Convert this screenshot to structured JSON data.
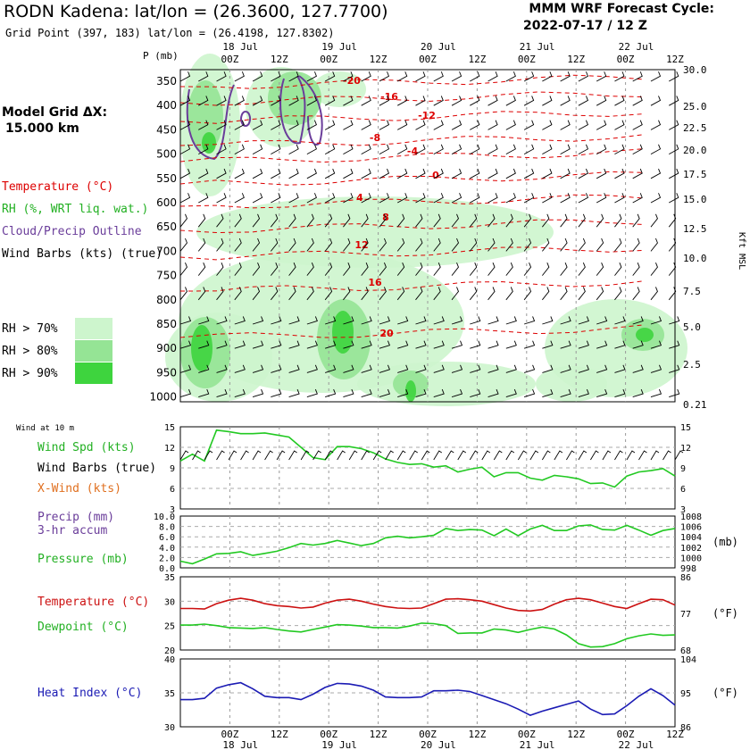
{
  "header": {
    "title": "RODN Kadena:  lat/lon = (26.3600, 127.7700)",
    "subtitle": "Grid Point (397, 183) lat/lon = (26.4198, 127.8302)",
    "forecast_title": "MMM WRF Forecast Cycle:",
    "forecast_cycle": "2022-07-17 / 12  Z"
  },
  "sidebar": {
    "model_grid_line1": "Model Grid ΔX:",
    "model_grid_line2": "15.000 km",
    "legend": {
      "temperature": "Temperature (°C)",
      "rh": "RH (%, WRT liq. wat.)",
      "cloud": "Cloud/Precip Outline",
      "wind": "Wind Barbs (kts) (true)"
    },
    "rh_boxes": [
      {
        "label": "RH > 70%",
        "color": "#cdf5cd"
      },
      {
        "label": "RH > 80%",
        "color": "#95e495"
      },
      {
        "label": "RH > 90%",
        "color": "#3ed43e"
      }
    ],
    "panel_labels": {
      "wind_at_10m": "Wind at 10 m",
      "wind_spd": "Wind Spd (kts)",
      "wind_barbs": "Wind Barbs (true)",
      "xwind": "X-Wind (kts)",
      "precip_line1": "Precip (mm)",
      "precip_line2": "3-hr accum",
      "pressure": "Pressure (mb)",
      "temperature": "Temperature (°C)",
      "dewpoint": "Dewpoint (°C)",
      "heat_index": "Heat Index (°C)"
    }
  },
  "chart_data": [
    {
      "type": "heatmap",
      "name": "time-height cross section",
      "y_axis_label": "P (mb)",
      "right_axis_label": "Kft MSL",
      "time_axis": {
        "top_dates": [
          "18 Jul",
          "19 Jul",
          "20 Jul",
          "21 Jul",
          "22 Jul"
        ],
        "hour_ticks": [
          "00Z",
          "12Z",
          "00Z",
          "12Z",
          "00Z",
          "12Z",
          "00Z",
          "12Z",
          "00Z",
          "12Z"
        ]
      },
      "pressure_levels": [
        "350",
        "400",
        "450",
        "500",
        "550",
        "600",
        "650",
        "700",
        "750",
        "800",
        "850",
        "900",
        "950",
        "1000"
      ],
      "height_kft": [
        "30.0",
        "25.0",
        "22.5",
        "20.0",
        "17.5",
        "15.0",
        "12.5",
        "10.0",
        "7.5",
        "5.0",
        "2.5",
        "0.21"
      ],
      "temperature_contour_labels": [
        "-20",
        "-16",
        "-12",
        "-8",
        "-4",
        "0",
        "4",
        "8",
        "12",
        "16",
        "20"
      ],
      "colors": {
        "temperature": "#dd0000",
        "rh": "#2fb82f",
        "cloud": "#6a3d9a",
        "wind": "#000000"
      }
    },
    {
      "type": "line",
      "name": "wind at 10 m",
      "left_ticks": [
        "15",
        "12",
        "9",
        "6",
        "3"
      ],
      "right_ticks": [
        "15",
        "12",
        "9",
        "6",
        "3"
      ],
      "ylim": [
        3,
        15
      ],
      "series": [
        {
          "name": "Wind Spd (kts)",
          "color": "#22c922",
          "values": [
            10,
            11,
            10,
            14.5,
            14.3,
            14,
            14,
            14.1,
            13.8,
            13.5,
            12,
            10.5,
            10.2,
            12.1,
            12.1,
            11.8,
            11.2,
            10.3,
            9.8,
            9.5,
            9.6,
            9.1,
            9.3,
            8.4,
            8.8,
            9.1,
            7.7,
            8.3,
            8.3,
            7.5,
            7.2,
            7.9,
            7.7,
            7.4,
            6.7,
            6.8,
            6.2,
            7.8,
            8.4,
            8.6,
            8.9,
            7.8
          ]
        }
      ]
    },
    {
      "type": "line",
      "name": "precip and pressure",
      "left_ticks": [
        "10.0",
        "8.0",
        "6.0",
        "4.0",
        "2.0",
        "0.0"
      ],
      "right_ticks": [
        "1008",
        "1006",
        "1004",
        "1002",
        "1000",
        "998"
      ],
      "right_unit": "(mb)",
      "ylim": [
        998,
        1008
      ],
      "series": [
        {
          "name": "Pressure (mb)",
          "color": "#22c922",
          "values": [
            999.3,
            998.8,
            999.7,
            1000.7,
            1000.8,
            1001.1,
            1000.4,
            1000.8,
            1001.2,
            1001.9,
            1002.7,
            1002.4,
            1002.7,
            1003.3,
            1002.8,
            1002.3,
            1002.7,
            1003.8,
            1004.1,
            1003.8,
            1004.0,
            1004.3,
            1005.6,
            1005.2,
            1005.4,
            1005.3,
            1004.2,
            1005.5,
            1004.2,
            1005.5,
            1006.2,
            1005.2,
            1005.2,
            1006.1,
            1006.3,
            1005.4,
            1005.3,
            1006.2,
            1005.3,
            1004.3,
            1005.2,
            1005.6
          ]
        }
      ]
    },
    {
      "type": "line",
      "name": "temperature and dewpoint",
      "left_ticks": [
        "35",
        "30",
        "25",
        "20"
      ],
      "right_ticks": [
        "86",
        "77",
        "68"
      ],
      "right_unit": "(°F)",
      "ylim": [
        20,
        35
      ],
      "series": [
        {
          "name": "Temperature (°C)",
          "color": "#cc1111",
          "values": [
            28.5,
            28.5,
            28.4,
            29.5,
            30.2,
            30.6,
            30.2,
            29.5,
            29.1,
            28.9,
            28.6,
            28.8,
            29.6,
            30.2,
            30.4,
            30.0,
            29.4,
            28.9,
            28.6,
            28.5,
            28.6,
            29.5,
            30.4,
            30.5,
            30.3,
            30.0,
            29.3,
            28.6,
            28.1,
            28.0,
            28.3,
            29.4,
            30.3,
            30.6,
            30.3,
            29.6,
            28.9,
            28.5,
            29.5,
            30.4,
            30.3,
            29.2
          ]
        },
        {
          "name": "Dewpoint (°C)",
          "color": "#22c922",
          "values": [
            25.1,
            25.1,
            25.3,
            25.0,
            24.6,
            24.5,
            24.4,
            24.6,
            24.2,
            23.9,
            23.7,
            24.2,
            24.7,
            25.2,
            25.1,
            24.9,
            24.6,
            24.6,
            24.5,
            24.9,
            25.5,
            25.4,
            25.0,
            23.4,
            23.5,
            23.5,
            24.3,
            24.1,
            23.6,
            24.2,
            24.7,
            24.3,
            23.1,
            21.3,
            20.6,
            20.7,
            21.3,
            22.3,
            22.9,
            23.3,
            23.0,
            23.1
          ]
        }
      ]
    },
    {
      "type": "line",
      "name": "heat index",
      "left_ticks": [
        "40",
        "35",
        "30"
      ],
      "right_ticks": [
        "104",
        "95",
        "86"
      ],
      "right_unit": "(°F)",
      "ylim": [
        30,
        40
      ],
      "series": [
        {
          "name": "Heat Index (°C)",
          "color": "#1b1bb4",
          "values": [
            34.0,
            34.0,
            34.2,
            35.7,
            36.2,
            36.5,
            35.6,
            34.5,
            34.3,
            34.3,
            34.0,
            34.8,
            35.8,
            36.4,
            36.3,
            36.0,
            35.4,
            34.4,
            34.3,
            34.3,
            34.4,
            35.3,
            35.3,
            35.4,
            35.2,
            34.6,
            34.0,
            33.4,
            32.6,
            31.7,
            32.3,
            32.8,
            33.3,
            33.8,
            32.6,
            31.8,
            31.9,
            33.1,
            34.5,
            35.6,
            34.6,
            33.2
          ]
        }
      ]
    }
  ],
  "bottom_axis": {
    "hour_ticks": [
      "00Z",
      "12Z",
      "00Z",
      "12Z",
      "00Z",
      "12Z",
      "00Z",
      "12Z",
      "00Z",
      "12Z"
    ],
    "dates": [
      "18 Jul",
      "19 Jul",
      "20 Jul",
      "21 Jul",
      "22 Jul"
    ]
  }
}
